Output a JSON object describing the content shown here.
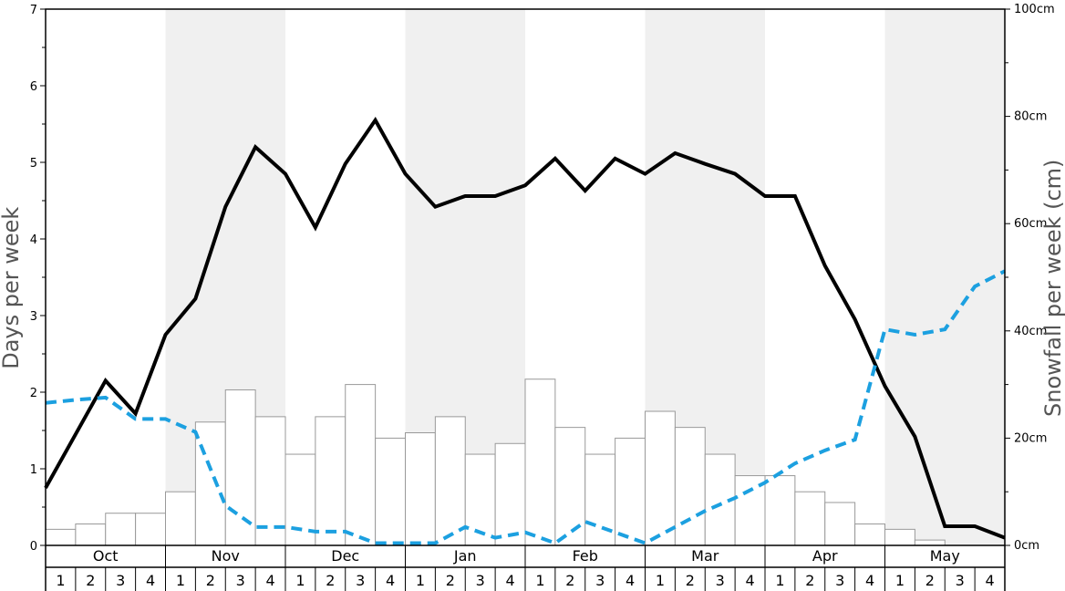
{
  "chart_data": {
    "type": "bar+line",
    "left_axis": {
      "label": "Days per week",
      "ylim": [
        0,
        7
      ],
      "ticks": [
        0,
        1,
        2,
        3,
        4,
        5,
        6,
        7
      ],
      "tick_labels": [
        "0",
        "1",
        "2",
        "3",
        "4",
        "5",
        "6",
        "7"
      ]
    },
    "right_axis": {
      "label": "Snowfall per week (cm)",
      "ylim": [
        0,
        100
      ],
      "ticks": [
        0,
        20,
        40,
        60,
        80,
        100
      ],
      "tick_labels": [
        "0cm",
        "20cm",
        "40cm",
        "60cm",
        "80cm",
        "100cm"
      ]
    },
    "months": [
      "Oct",
      "Nov",
      "Dec",
      "Jan",
      "Feb",
      "Mar",
      "Apr",
      "May"
    ],
    "weeks": [
      "1",
      "2",
      "3",
      "4"
    ],
    "shaded_months": [
      "Nov",
      "Jan",
      "Mar",
      "May"
    ],
    "colors": {
      "solid_line": "#000000",
      "dashed_line": "#1ca0e0",
      "bar_fill": "#ffffff",
      "bar_stroke": "#999999",
      "shade": "#f0f0f0"
    },
    "series": [
      {
        "type": "bar",
        "axis": "right",
        "values": [
          3,
          4,
          6,
          6,
          10,
          23,
          29,
          24,
          17,
          24,
          30,
          20,
          21,
          24,
          17,
          19,
          31,
          22,
          17,
          20,
          25,
          22,
          17,
          13,
          13,
          10,
          8,
          4,
          3,
          1,
          0,
          0
        ]
      },
      {
        "type": "line",
        "style": "solid",
        "axis": "left",
        "values": [
          0.75,
          1.45,
          2.15,
          1.72,
          2.75,
          3.22,
          4.42,
          5.2,
          4.85,
          4.15,
          4.98,
          5.55,
          4.85,
          4.42,
          4.56,
          4.56,
          4.7,
          5.05,
          4.63,
          5.05,
          4.85,
          5.12,
          4.98,
          4.85,
          4.56,
          4.56,
          3.65,
          2.95,
          2.08,
          1.42,
          0.25,
          0.25,
          0.1
        ]
      },
      {
        "type": "line",
        "style": "dashed",
        "axis": "left",
        "values": [
          1.86,
          1.9,
          1.93,
          1.65,
          1.65,
          1.48,
          0.52,
          0.24,
          0.24,
          0.18,
          0.18,
          0.03,
          0.03,
          0.03,
          0.24,
          0.1,
          0.17,
          0.03,
          0.31,
          0.17,
          0.03,
          0.24,
          0.45,
          0.62,
          0.82,
          1.07,
          1.24,
          1.38,
          2.82,
          2.75,
          2.82,
          3.38,
          3.58
        ]
      }
    ]
  }
}
